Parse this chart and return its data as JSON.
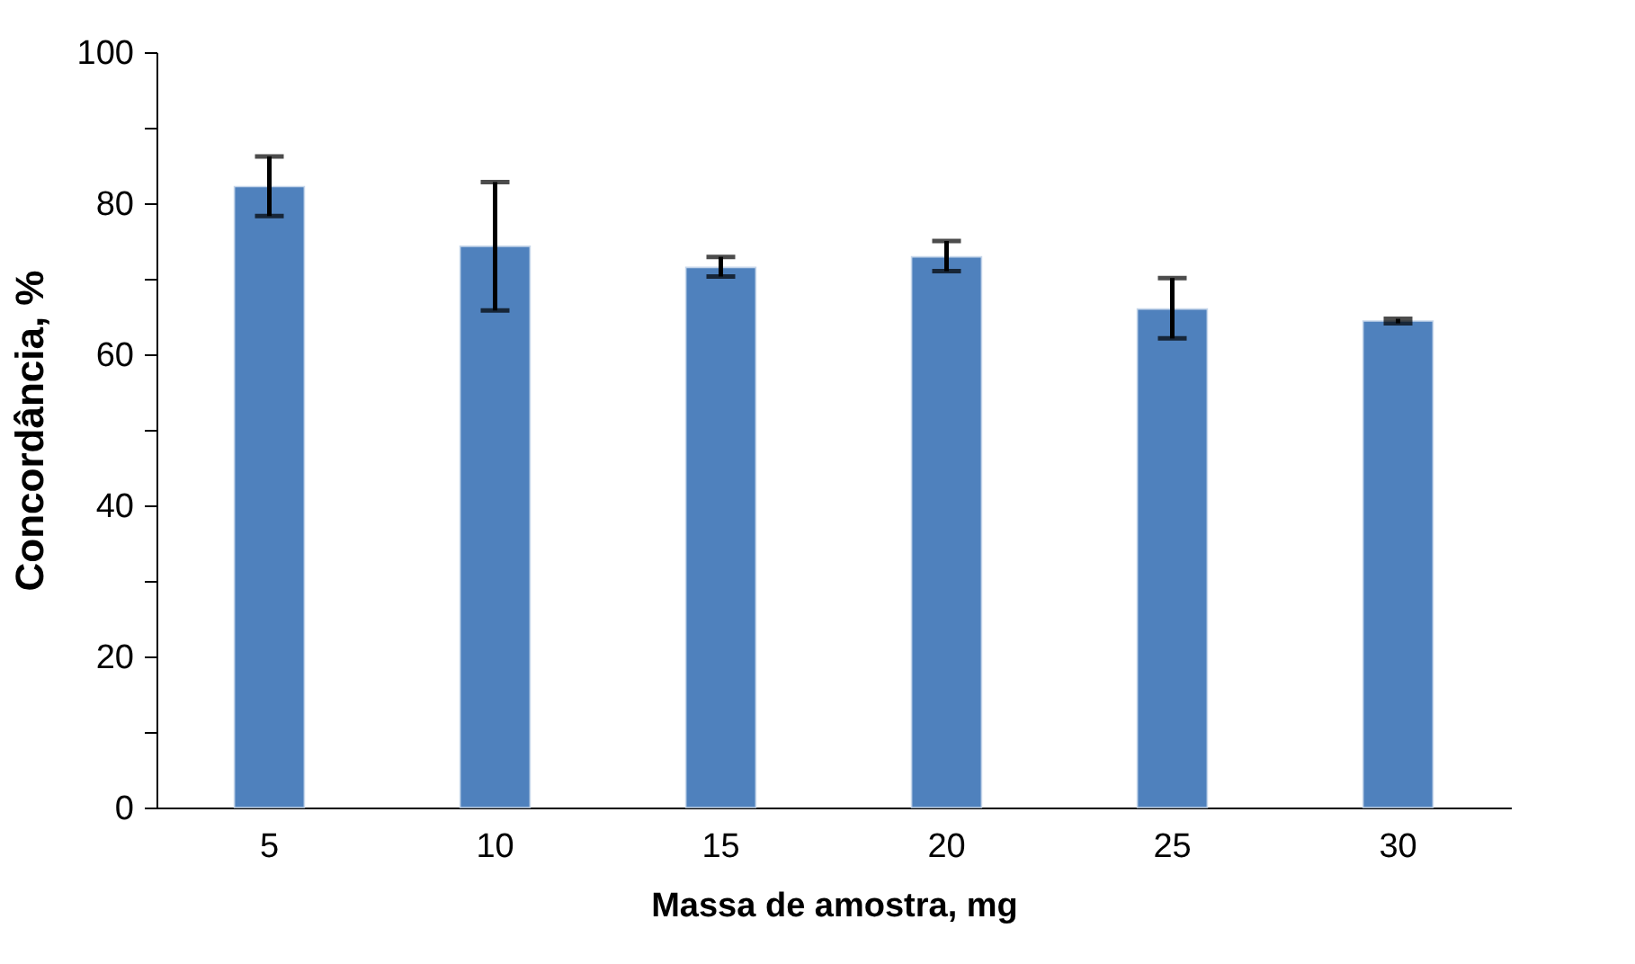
{
  "chart_data": {
    "type": "bar",
    "categories": [
      "5",
      "10",
      "15",
      "20",
      "25",
      "30"
    ],
    "values": [
      82.2,
      74.3,
      71.5,
      72.9,
      66.0,
      64.4
    ],
    "errors": [
      [
        78.3,
        86.2
      ],
      [
        65.8,
        82.8
      ],
      [
        70.3,
        72.9
      ],
      [
        71.0,
        75.0
      ],
      [
        62.1,
        70.1
      ],
      [
        64.1,
        64.7
      ]
    ],
    "color": "#4f81bd",
    "xlabel": "Massa de amostra, mg",
    "ylabel": "Concordância,  %",
    "ylim": [
      0,
      100
    ],
    "yticks": [
      0,
      {
        "value": 10,
        "label": null
      },
      20,
      {
        "value": 30,
        "label": null
      },
      40,
      {
        "value": 50,
        "label": null
      },
      60,
      {
        "value": 70,
        "label": null
      },
      80,
      {
        "value": 90,
        "label": null
      },
      100
    ],
    "grid": false
  }
}
